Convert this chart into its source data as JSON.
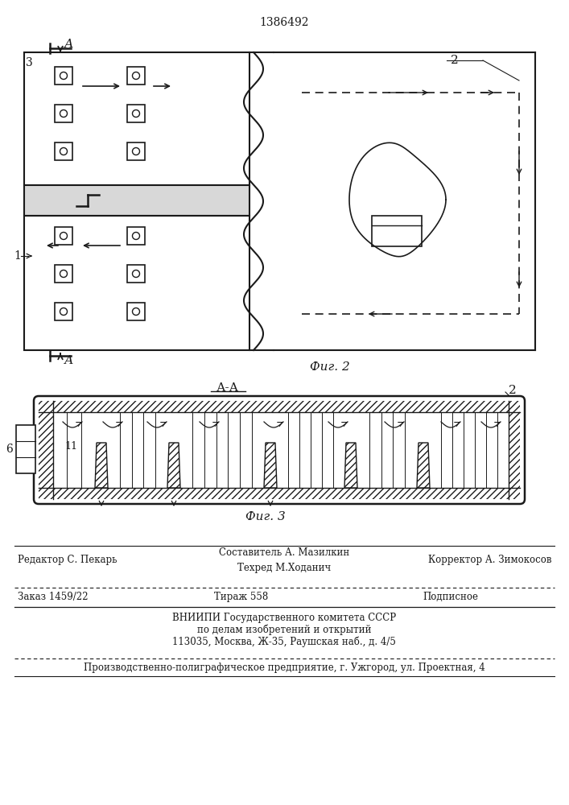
{
  "patent_number": "1386492",
  "fig2_label": "Фиг. 2",
  "fig3_label": "Фиг. 3",
  "aa_label": "А-А",
  "label_2_fig2": "2",
  "label_2_fig3": "2",
  "label_3": "3",
  "label_1": "1",
  "label_6": "6",
  "label_11": "11",
  "label_A_top": "А",
  "label_A_bottom": "А",
  "footer_line1_left": "Редактор С. Пекарь",
  "footer_line1_center1": "Составитель А. Мазилкин",
  "footer_line1_center2": "Техред М.Ходанич",
  "footer_line1_right": "Корректор А. Зимокосов",
  "footer_line2_left": "Заказ 1459/22",
  "footer_line2_center": "Тираж 558",
  "footer_line2_right": "Подписное",
  "footer_line3": "ВНИИПИ Государственного комитета СССР",
  "footer_line4": "по делам изобретений и открытий",
  "footer_line5": "113035, Москва, Ж-35, Раушская наб., д. 4/5",
  "footer_line6": "Производственно-полиграфическое предприятие, г. Ужгород, ул. Проектная, 4",
  "bg_color": "#ffffff",
  "line_color": "#1a1a1a"
}
